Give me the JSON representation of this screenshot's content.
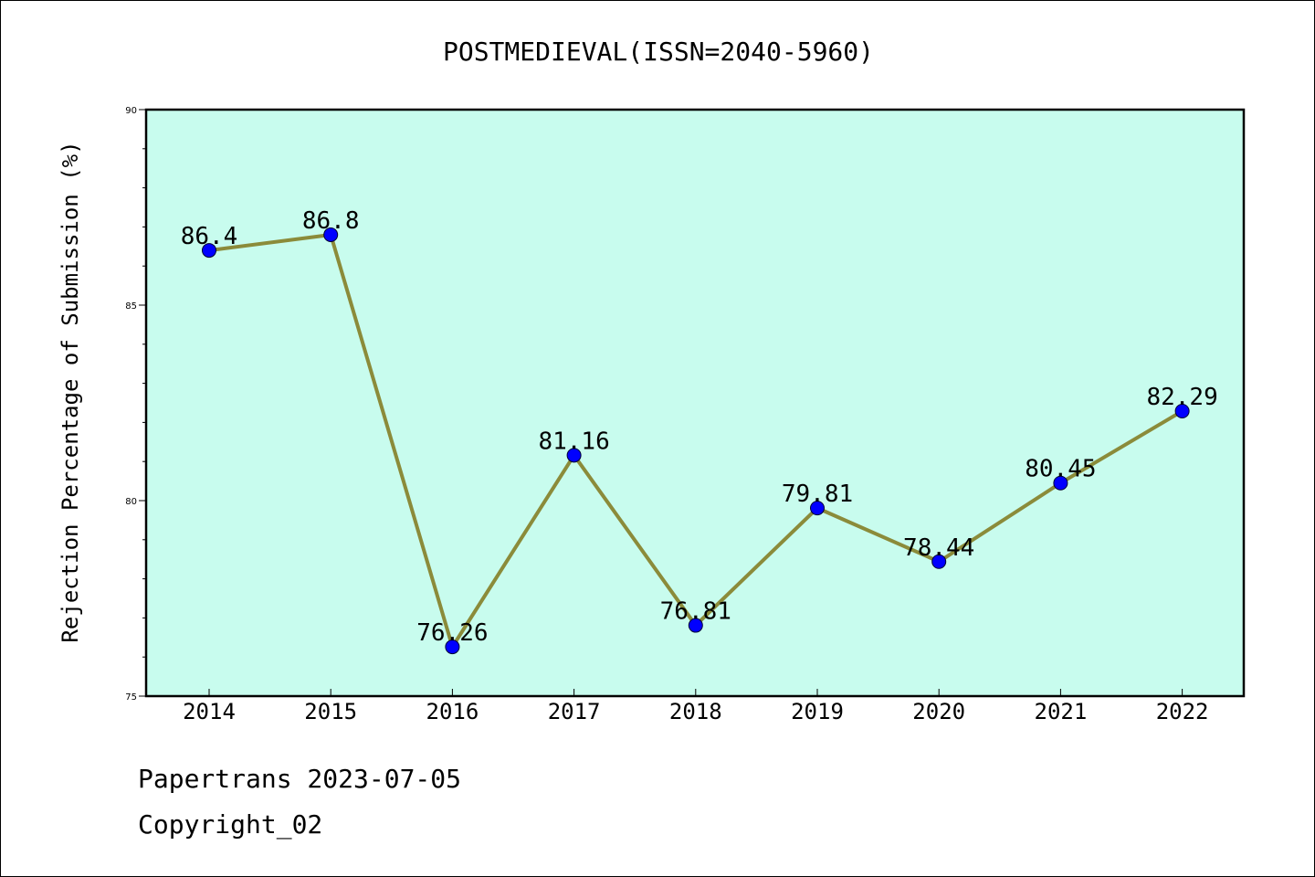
{
  "chart_data": {
    "type": "line",
    "title": "POSTMEDIEVAL(ISSN=2040-5960)",
    "xlabel": "",
    "ylabel": "Rejection Percentage of Submission (%)",
    "categories": [
      "2014",
      "2015",
      "2016",
      "2017",
      "2018",
      "2019",
      "2020",
      "2021",
      "2022"
    ],
    "series": [
      {
        "values": [
          86.4,
          86.8,
          76.26,
          81.16,
          76.81,
          79.81,
          78.44,
          80.45,
          82.29
        ]
      }
    ],
    "data_labels": [
      "86.4",
      "86.8",
      "76.26",
      "81.16",
      "76.81",
      "79.81",
      "78.44",
      "80.45",
      "82.29"
    ],
    "ylim": [
      75,
      90
    ],
    "yticks": [
      "75",
      "80",
      "85",
      "90"
    ],
    "grid": false,
    "legend": "none",
    "colors": {
      "plot_background": "#c8fcee",
      "line": "#8b8b3a",
      "marker": "#0000ff"
    }
  },
  "footer": {
    "line1": "Papertrans 2023-07-05",
    "line2": "Copyright_02"
  }
}
